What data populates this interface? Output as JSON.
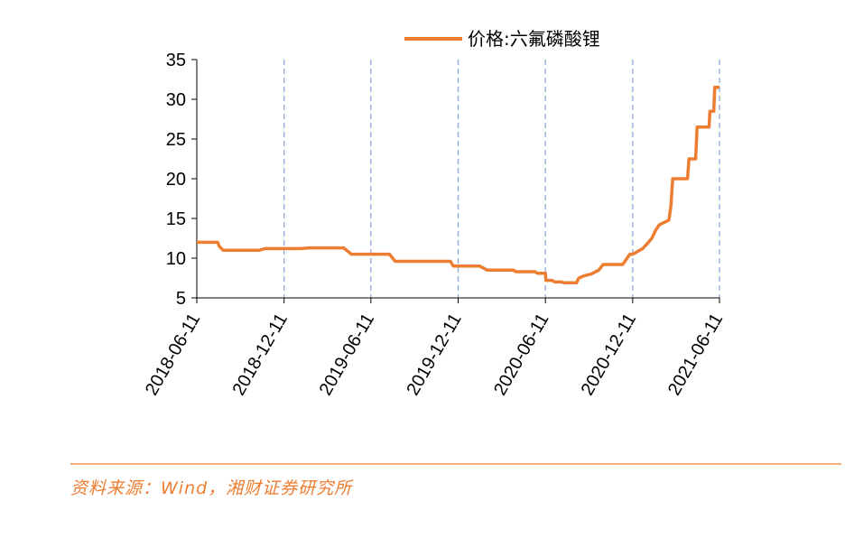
{
  "colors": {
    "series": "#ED7D31",
    "grid": "#8FAADC",
    "axis": "#000000",
    "source_text": "#ED7D31",
    "rule": "#ED7D31"
  },
  "chart_data": {
    "type": "line",
    "title": "",
    "xlabel": "",
    "ylabel": "",
    "ylim": [
      5,
      35
    ],
    "yticks": [
      "5",
      "10",
      "15",
      "20",
      "25",
      "30",
      "35"
    ],
    "xticks": [
      "2018-06-11",
      "2018-12-11",
      "2019-06-11",
      "2019-12-11",
      "2020-06-11",
      "2020-12-11",
      "2021-06-11"
    ],
    "grid": "vertical dashed lines at x ticks",
    "legend_placement": "top",
    "series": [
      {
        "name": "价格:六氟磷酸锂",
        "points": [
          [
            "2018-06-11",
            12.0
          ],
          [
            "2018-07-25",
            12.0
          ],
          [
            "2018-07-28",
            11.5
          ],
          [
            "2018-08-05",
            11.0
          ],
          [
            "2018-10-20",
            11.0
          ],
          [
            "2018-11-01",
            11.2
          ],
          [
            "2019-01-15",
            11.2
          ],
          [
            "2019-02-01",
            11.3
          ],
          [
            "2019-04-15",
            11.3
          ],
          [
            "2019-05-01",
            10.5
          ],
          [
            "2019-07-20",
            10.5
          ],
          [
            "2019-08-01",
            9.6
          ],
          [
            "2019-11-25",
            9.6
          ],
          [
            "2019-12-01",
            9.0
          ],
          [
            "2020-01-25",
            9.0
          ],
          [
            "2020-02-10",
            8.5
          ],
          [
            "2020-04-05",
            8.5
          ],
          [
            "2020-04-10",
            8.3
          ],
          [
            "2020-05-20",
            8.3
          ],
          [
            "2020-05-25",
            8.1
          ],
          [
            "2020-06-11",
            8.1
          ],
          [
            "2020-06-12",
            7.2
          ],
          [
            "2020-06-25",
            7.2
          ],
          [
            "2020-07-01",
            7.0
          ],
          [
            "2020-07-15",
            7.0
          ],
          [
            "2020-07-20",
            6.9
          ],
          [
            "2020-08-15",
            6.9
          ],
          [
            "2020-08-20",
            7.5
          ],
          [
            "2020-09-01",
            7.8
          ],
          [
            "2020-09-15",
            8.0
          ],
          [
            "2020-10-01",
            8.5
          ],
          [
            "2020-10-10",
            9.2
          ],
          [
            "2020-11-20",
            9.2
          ],
          [
            "2020-12-05",
            10.5
          ],
          [
            "2020-12-11",
            10.5
          ],
          [
            "2020-12-20",
            10.8
          ],
          [
            "2021-01-01",
            11.2
          ],
          [
            "2021-01-10",
            11.8
          ],
          [
            "2021-01-20",
            12.5
          ],
          [
            "2021-01-28",
            13.5
          ],
          [
            "2021-02-05",
            14.2
          ],
          [
            "2021-02-15",
            14.5
          ],
          [
            "2021-02-25",
            14.8
          ],
          [
            "2021-03-01",
            16.5
          ],
          [
            "2021-03-05",
            20.0
          ],
          [
            "2021-04-05",
            20.0
          ],
          [
            "2021-04-08",
            22.5
          ],
          [
            "2021-04-22",
            22.5
          ],
          [
            "2021-04-25",
            26.5
          ],
          [
            "2021-05-20",
            26.5
          ],
          [
            "2021-05-22",
            28.5
          ],
          [
            "2021-05-30",
            28.5
          ],
          [
            "2021-06-01",
            31.5
          ],
          [
            "2021-06-11",
            31.5
          ]
        ]
      }
    ]
  },
  "source": {
    "text": "资料来源：Wind，湘财证券研究所"
  }
}
